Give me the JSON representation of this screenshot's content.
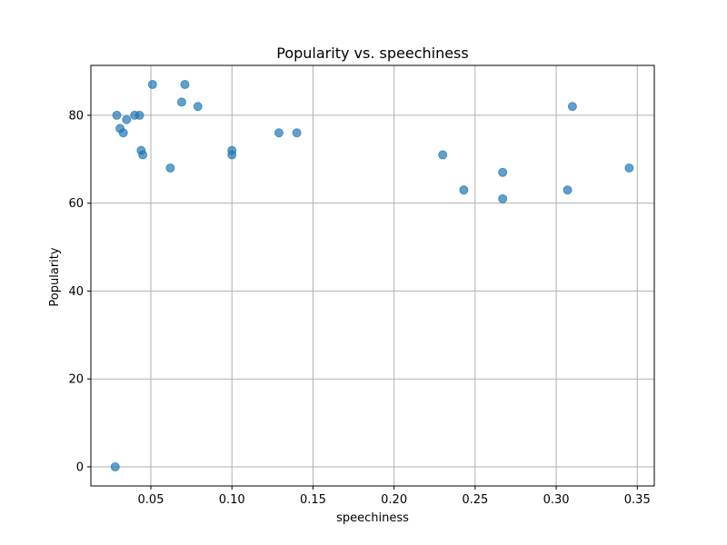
{
  "chart_data": {
    "type": "scatter",
    "title": "Popularity vs. speechiness",
    "xlabel": "speechiness",
    "ylabel": "Popularity",
    "xlim": [
      0.013,
      0.3605
    ],
    "ylim": [
      -4.35,
      91.35
    ],
    "xticks": [
      0.05,
      0.1,
      0.15,
      0.2,
      0.25,
      0.3,
      0.35
    ],
    "xtick_labels": [
      "0.05",
      "0.10",
      "0.15",
      "0.20",
      "0.25",
      "0.30",
      "0.35"
    ],
    "yticks": [
      0,
      20,
      40,
      60,
      80
    ],
    "ytick_labels": [
      "0",
      "20",
      "40",
      "60",
      "80"
    ],
    "grid": true,
    "marker_color": "#1f77b4",
    "marker_alpha": 0.7,
    "points": [
      {
        "x": 0.028,
        "y": 0
      },
      {
        "x": 0.029,
        "y": 80
      },
      {
        "x": 0.031,
        "y": 77
      },
      {
        "x": 0.033,
        "y": 76
      },
      {
        "x": 0.035,
        "y": 79
      },
      {
        "x": 0.04,
        "y": 80
      },
      {
        "x": 0.043,
        "y": 80
      },
      {
        "x": 0.044,
        "y": 72
      },
      {
        "x": 0.045,
        "y": 71
      },
      {
        "x": 0.051,
        "y": 87
      },
      {
        "x": 0.062,
        "y": 68
      },
      {
        "x": 0.069,
        "y": 83
      },
      {
        "x": 0.071,
        "y": 87
      },
      {
        "x": 0.079,
        "y": 82
      },
      {
        "x": 0.1,
        "y": 72
      },
      {
        "x": 0.1,
        "y": 71
      },
      {
        "x": 0.129,
        "y": 76
      },
      {
        "x": 0.14,
        "y": 76
      },
      {
        "x": 0.23,
        "y": 71
      },
      {
        "x": 0.243,
        "y": 63
      },
      {
        "x": 0.267,
        "y": 67
      },
      {
        "x": 0.267,
        "y": 61
      },
      {
        "x": 0.307,
        "y": 63
      },
      {
        "x": 0.31,
        "y": 82
      },
      {
        "x": 0.345,
        "y": 68
      }
    ]
  }
}
